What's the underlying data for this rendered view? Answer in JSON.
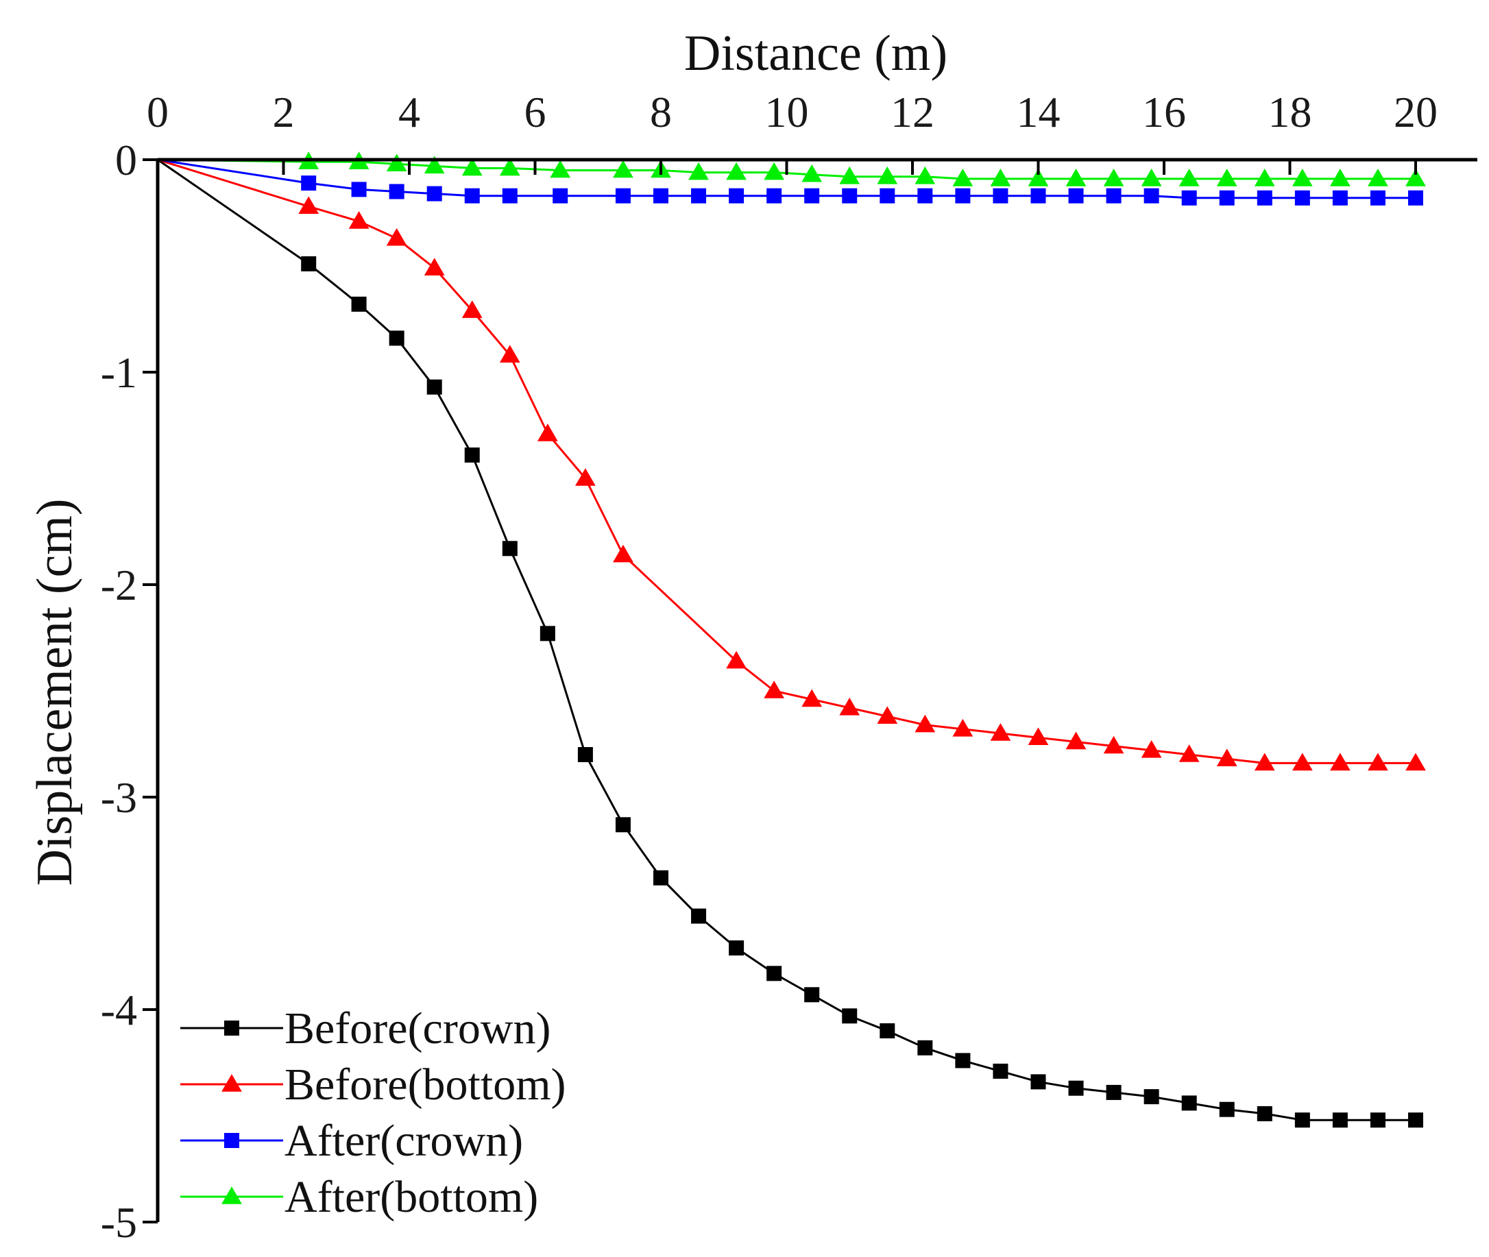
{
  "chart_data": {
    "type": "line",
    "title": "",
    "xlabel": "Distance (m)",
    "ylabel": "Displacement (cm)",
    "xlim": [
      0,
      21
    ],
    "ylim": [
      -5,
      0
    ],
    "x_ticks": [
      0,
      2,
      4,
      6,
      8,
      10,
      12,
      14,
      16,
      18,
      20
    ],
    "y_ticks": [
      0,
      -1,
      -2,
      -3,
      -4,
      -5
    ],
    "x_tick_labels": [
      "0",
      "2",
      "4",
      "6",
      "8",
      "10",
      "12",
      "14",
      "16",
      "18",
      "20"
    ],
    "y_tick_labels": [
      "0",
      "-1",
      "-2",
      "-3",
      "-4",
      "-5"
    ],
    "x_axis_position": "top",
    "grid": false,
    "legend_position": "bottom-left",
    "series": [
      {
        "name": "Before(crown)",
        "color": "#000000",
        "marker": "square",
        "x": [
          0,
          2.4,
          3.2,
          3.8,
          4.4,
          5.0,
          5.6,
          6.2,
          6.8,
          7.4,
          8.0,
          8.6,
          9.2,
          9.8,
          10.4,
          11.0,
          11.6,
          12.2,
          12.8,
          13.4,
          14.0,
          14.6,
          15.2,
          15.8,
          16.4,
          17.0,
          17.6,
          18.2,
          18.8,
          19.4,
          20.0
        ],
        "y": [
          0,
          -0.49,
          -0.68,
          -0.84,
          -1.07,
          -1.39,
          -1.83,
          -2.23,
          -2.8,
          -3.13,
          -3.38,
          -3.56,
          -3.71,
          -3.83,
          -3.93,
          -4.03,
          -4.1,
          -4.18,
          -4.24,
          -4.29,
          -4.34,
          -4.37,
          -4.39,
          -4.41,
          -4.44,
          -4.47,
          -4.49,
          -4.52,
          -4.52,
          -4.52,
          -4.52
        ]
      },
      {
        "name": "Before(bottom)",
        "color": "#ff0000",
        "marker": "triangle",
        "x": [
          0,
          2.4,
          3.2,
          3.8,
          4.4,
          5.0,
          5.6,
          6.2,
          6.8,
          7.4,
          9.2,
          9.8,
          10.4,
          11.0,
          11.6,
          12.2,
          12.8,
          13.4,
          14.0,
          14.6,
          15.2,
          15.8,
          16.4,
          17.0,
          17.6,
          18.2,
          18.8,
          19.4,
          20.0
        ],
        "y": [
          0,
          -0.22,
          -0.29,
          -0.37,
          -0.51,
          -0.71,
          -0.92,
          -1.29,
          -1.5,
          -1.86,
          -2.36,
          -2.5,
          -2.54,
          -2.58,
          -2.62,
          -2.66,
          -2.68,
          -2.7,
          -2.72,
          -2.74,
          -2.76,
          -2.78,
          -2.8,
          -2.82,
          -2.84,
          -2.84,
          -2.84,
          -2.84,
          -2.84
        ]
      },
      {
        "name": "After(crown)",
        "color": "#0000ff",
        "marker": "square",
        "x": [
          0,
          2.4,
          3.2,
          3.8,
          4.4,
          5.0,
          5.6,
          6.4,
          7.4,
          8.0,
          8.6,
          9.2,
          9.8,
          10.4,
          11.0,
          11.6,
          12.2,
          12.8,
          13.4,
          14.0,
          14.6,
          15.2,
          15.8,
          16.4,
          17.0,
          17.6,
          18.2,
          18.8,
          19.4,
          20.0
        ],
        "y": [
          0,
          -0.11,
          -0.14,
          -0.15,
          -0.16,
          -0.17,
          -0.17,
          -0.17,
          -0.17,
          -0.17,
          -0.17,
          -0.17,
          -0.17,
          -0.17,
          -0.17,
          -0.17,
          -0.17,
          -0.17,
          -0.17,
          -0.17,
          -0.17,
          -0.17,
          -0.17,
          -0.18,
          -0.18,
          -0.18,
          -0.18,
          -0.18,
          -0.18,
          -0.18
        ]
      },
      {
        "name": "After(bottom)",
        "color": "#00ee00",
        "marker": "triangle",
        "x": [
          0,
          2.4,
          3.2,
          3.8,
          4.4,
          5.0,
          5.6,
          6.4,
          7.4,
          8.0,
          8.6,
          9.2,
          9.8,
          10.4,
          11.0,
          11.6,
          12.2,
          12.8,
          13.4,
          14.0,
          14.6,
          15.2,
          15.8,
          16.4,
          17.0,
          17.6,
          18.2,
          18.8,
          19.4,
          20.0
        ],
        "y": [
          0,
          -0.01,
          -0.01,
          -0.02,
          -0.03,
          -0.04,
          -0.04,
          -0.05,
          -0.05,
          -0.05,
          -0.06,
          -0.06,
          -0.06,
          -0.07,
          -0.08,
          -0.08,
          -0.08,
          -0.09,
          -0.09,
          -0.09,
          -0.09,
          -0.09,
          -0.09,
          -0.09,
          -0.09,
          -0.09,
          -0.09,
          -0.09,
          -0.09,
          -0.09
        ]
      }
    ]
  }
}
